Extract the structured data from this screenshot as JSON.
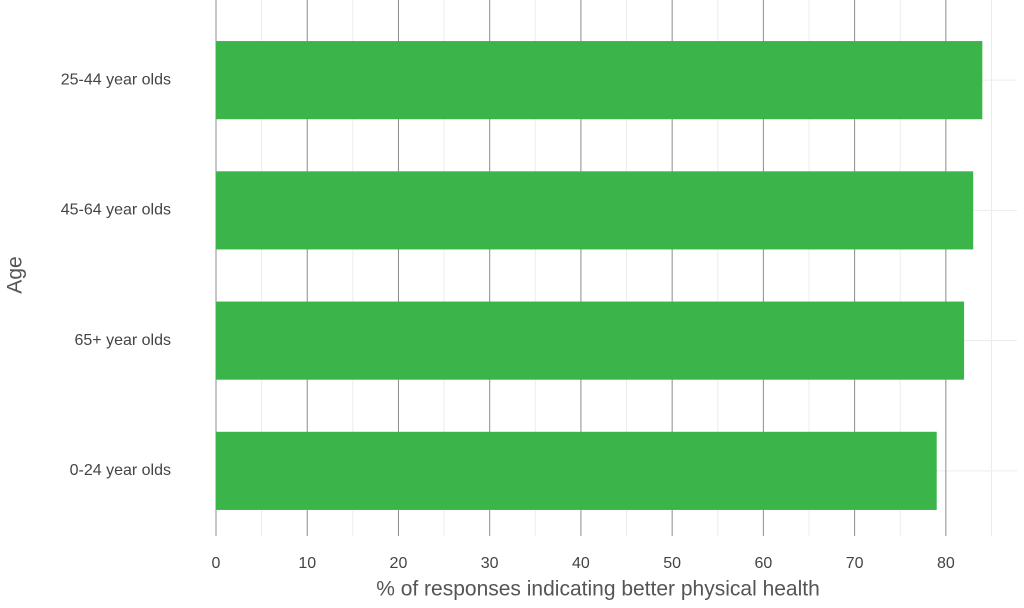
{
  "chart_data": {
    "type": "barh",
    "x_label": "% of responses indicating better physical health",
    "y_label": "Age",
    "categories": [
      "25-44 year olds",
      "45-64 year olds",
      "65+ year olds",
      "0-24 year olds"
    ],
    "values": [
      84,
      83,
      82,
      79
    ],
    "color": "#3bb54a",
    "xlim": [
      0,
      87.8
    ],
    "xticks": [
      0,
      10,
      20,
      30,
      40,
      50,
      60,
      70,
      80
    ],
    "minor_xticks": [
      5,
      15,
      25,
      35,
      45,
      55,
      65,
      75,
      85
    ],
    "grid": true
  }
}
